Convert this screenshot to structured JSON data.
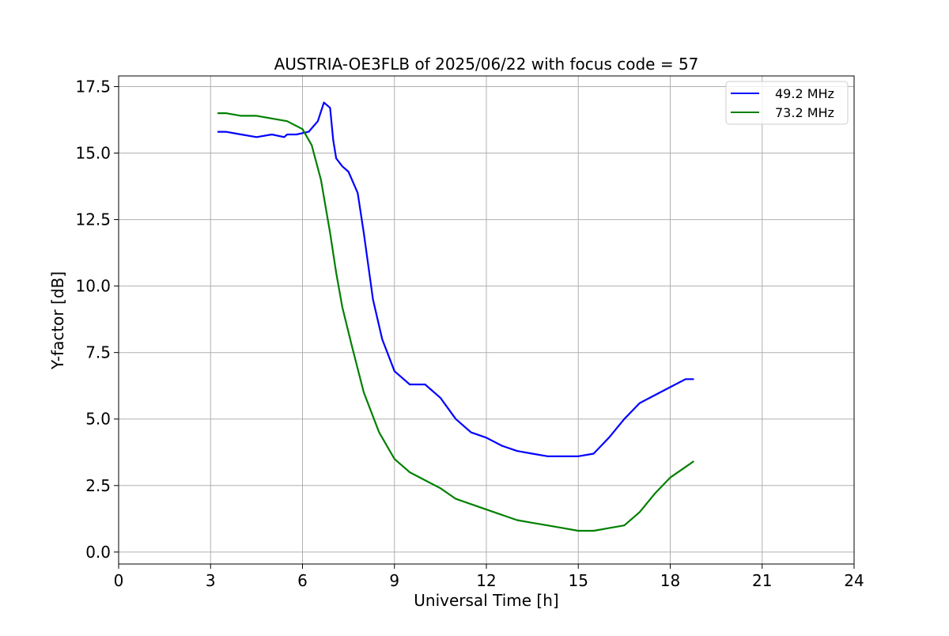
{
  "chart_data": {
    "type": "line",
    "title": "AUSTRIA-OE3FLB of 2025/06/22 with focus code = 57",
    "xlabel": "Universal Time [h]",
    "ylabel": "Y-factor [dB]",
    "xlim": [
      0,
      24
    ],
    "ylim": [
      -0.45,
      17.9
    ],
    "xticks": [
      0,
      3,
      6,
      9,
      12,
      15,
      18,
      21,
      24
    ],
    "xtick_labels": [
      "0",
      "3",
      "6",
      "9",
      "12",
      "15",
      "18",
      "21",
      "24"
    ],
    "yticks": [
      0,
      2.5,
      5,
      7.5,
      10,
      12.5,
      15,
      17.5
    ],
    "ytick_labels": [
      "0.0",
      "2.5",
      "5.0",
      "7.5",
      "10.0",
      "12.5",
      "15.0",
      "17.5"
    ],
    "grid": true,
    "legend_position": "top-right",
    "series": [
      {
        "name": "49.2 MHz",
        "color": "#0000ff",
        "x": [
          3.25,
          3.5,
          4.0,
          4.5,
          5.0,
          5.4,
          5.5,
          5.8,
          6.2,
          6.5,
          6.7,
          6.9,
          7.0,
          7.1,
          7.3,
          7.5,
          7.8,
          8.0,
          8.3,
          8.6,
          9.0,
          9.5,
          10.0,
          10.5,
          11.0,
          11.5,
          12.0,
          12.5,
          13.0,
          13.5,
          14.0,
          14.5,
          15.0,
          15.5,
          16.0,
          16.5,
          17.0,
          17.5,
          18.0,
          18.5,
          18.75
        ],
        "y": [
          15.8,
          15.8,
          15.7,
          15.6,
          15.7,
          15.6,
          15.7,
          15.7,
          15.8,
          16.2,
          16.9,
          16.7,
          15.5,
          14.8,
          14.5,
          14.3,
          13.5,
          12.0,
          9.5,
          8.0,
          6.8,
          6.3,
          6.3,
          5.8,
          5.0,
          4.5,
          4.3,
          4.0,
          3.8,
          3.7,
          3.6,
          3.6,
          3.6,
          3.7,
          4.3,
          5.0,
          5.6,
          5.9,
          6.2,
          6.5,
          6.5
        ]
      },
      {
        "name": "73.2 MHz",
        "color": "#008000",
        "x": [
          3.25,
          3.5,
          4.0,
          4.5,
          5.0,
          5.5,
          6.0,
          6.3,
          6.6,
          6.9,
          7.1,
          7.3,
          7.6,
          8.0,
          8.5,
          9.0,
          9.5,
          10.0,
          10.5,
          11.0,
          11.5,
          12.0,
          12.5,
          13.0,
          13.5,
          14.0,
          14.5,
          15.0,
          15.5,
          16.0,
          16.5,
          17.0,
          17.5,
          18.0,
          18.5,
          18.75
        ],
        "y": [
          16.5,
          16.5,
          16.4,
          16.4,
          16.3,
          16.2,
          15.9,
          15.3,
          14.0,
          12.0,
          10.5,
          9.2,
          7.8,
          6.0,
          4.5,
          3.5,
          3.0,
          2.7,
          2.4,
          2.0,
          1.8,
          1.6,
          1.4,
          1.2,
          1.1,
          1.0,
          0.9,
          0.8,
          0.8,
          0.9,
          1.0,
          1.5,
          2.2,
          2.8,
          3.2,
          3.4
        ]
      }
    ]
  }
}
